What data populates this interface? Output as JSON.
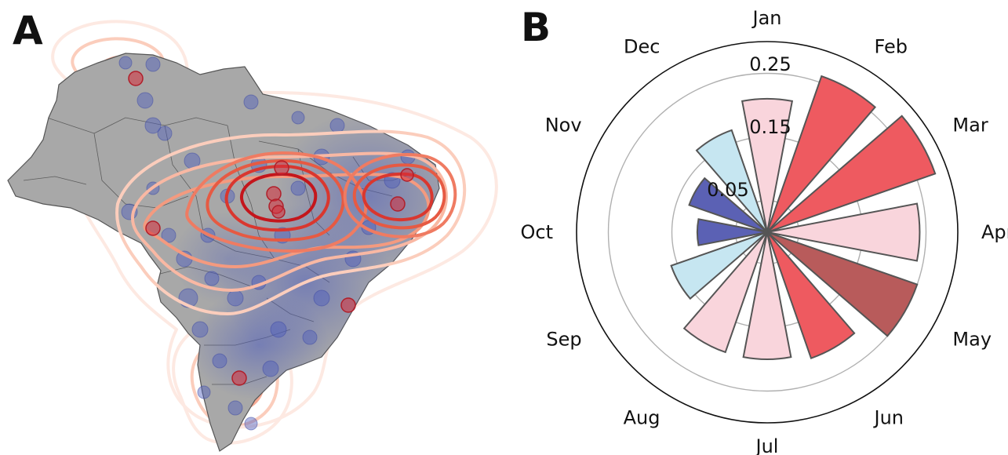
{
  "panels": {
    "a_label": "A",
    "b_label": "B"
  },
  "map": {
    "land_color": "#a8a8a8",
    "border_color": "#555555",
    "point_color": "#4e5dbd",
    "hotspot_color": "#d62d3a",
    "contour_colors": [
      "#fde1d6",
      "#fbc1a9",
      "#f79b7b",
      "#ee6a4d",
      "#d9372f",
      "#c4161c"
    ]
  },
  "chart_data": {
    "type": "polar-bar",
    "categories": [
      "Jan",
      "Feb",
      "Mar",
      "Apr",
      "May",
      "Jun",
      "Jul",
      "Aug",
      "Sep",
      "Oct",
      "Nov",
      "Dec"
    ],
    "values": [
      0.21,
      0.26,
      0.28,
      0.24,
      0.25,
      0.21,
      0.2,
      0.2,
      0.16,
      0.11,
      0.13,
      0.17
    ],
    "colors": [
      "#f9d5dc",
      "#ee5a60",
      "#ee5a60",
      "#f9d5dc",
      "#b85b5b",
      "#ee5a60",
      "#f9d5dc",
      "#f9d5dc",
      "#c6e6f1",
      "#5b61b4",
      "#5b61b4",
      "#c6e6f1"
    ],
    "r_ticks": [
      0.05,
      0.15,
      0.25
    ],
    "r_tick_labels": [
      "0.05",
      "0.15",
      "0.25"
    ],
    "rlim": [
      0,
      0.3
    ],
    "grid": true
  }
}
